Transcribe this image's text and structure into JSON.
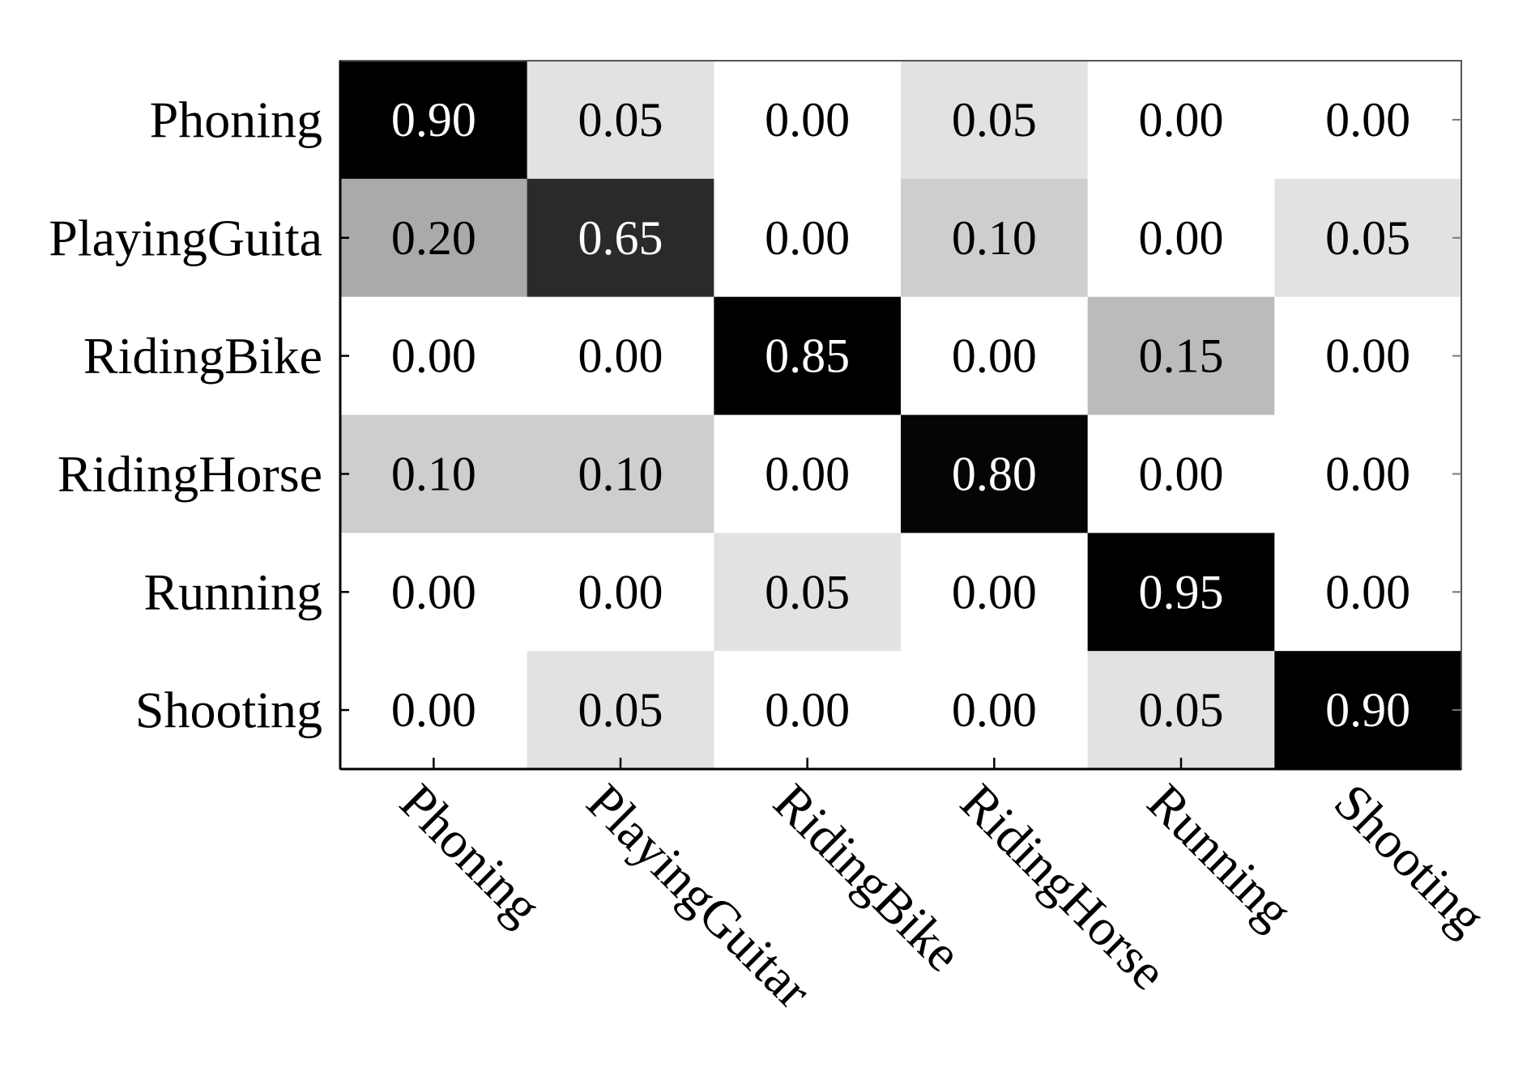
{
  "chart_data": {
    "type": "heatmap",
    "title": "",
    "xlabel": "",
    "ylabel": "",
    "row_labels": [
      "Phoning",
      "PlayingGuita",
      "RidingBike",
      "RidingHorse",
      "Running",
      "Shooting"
    ],
    "column_labels": [
      "Phoning",
      "PlayingGuitar",
      "RidingBike",
      "RidingHorse",
      "Running",
      "Shooting"
    ],
    "values": [
      [
        0.9,
        0.05,
        0.0,
        0.05,
        0.0,
        0.0
      ],
      [
        0.2,
        0.65,
        0.0,
        0.1,
        0.0,
        0.05
      ],
      [
        0.0,
        0.0,
        0.85,
        0.0,
        0.15,
        0.0
      ],
      [
        0.1,
        0.1,
        0.0,
        0.8,
        0.0,
        0.0
      ],
      [
        0.0,
        0.0,
        0.05,
        0.0,
        0.95,
        0.0
      ],
      [
        0.0,
        0.05,
        0.0,
        0.0,
        0.05,
        0.9
      ]
    ],
    "cell_labels": [
      [
        "0.90",
        "0.05",
        "0.00",
        "0.05",
        "0.00",
        "0.00"
      ],
      [
        "0.20",
        "0.65",
        "0.00",
        "0.10",
        "0.00",
        "0.05"
      ],
      [
        "0.00",
        "0.00",
        "0.85",
        "0.00",
        "0.15",
        "0.00"
      ],
      [
        "0.10",
        "0.10",
        "0.00",
        "0.80",
        "0.00",
        "0.00"
      ],
      [
        "0.00",
        "0.00",
        "0.05",
        "0.00",
        "0.95",
        "0.00"
      ],
      [
        "0.00",
        "0.05",
        "0.00",
        "0.00",
        "0.05",
        "0.90"
      ]
    ],
    "colormap": "grayscale (white = 0, black = high)",
    "grid": false,
    "legend": "none"
  }
}
